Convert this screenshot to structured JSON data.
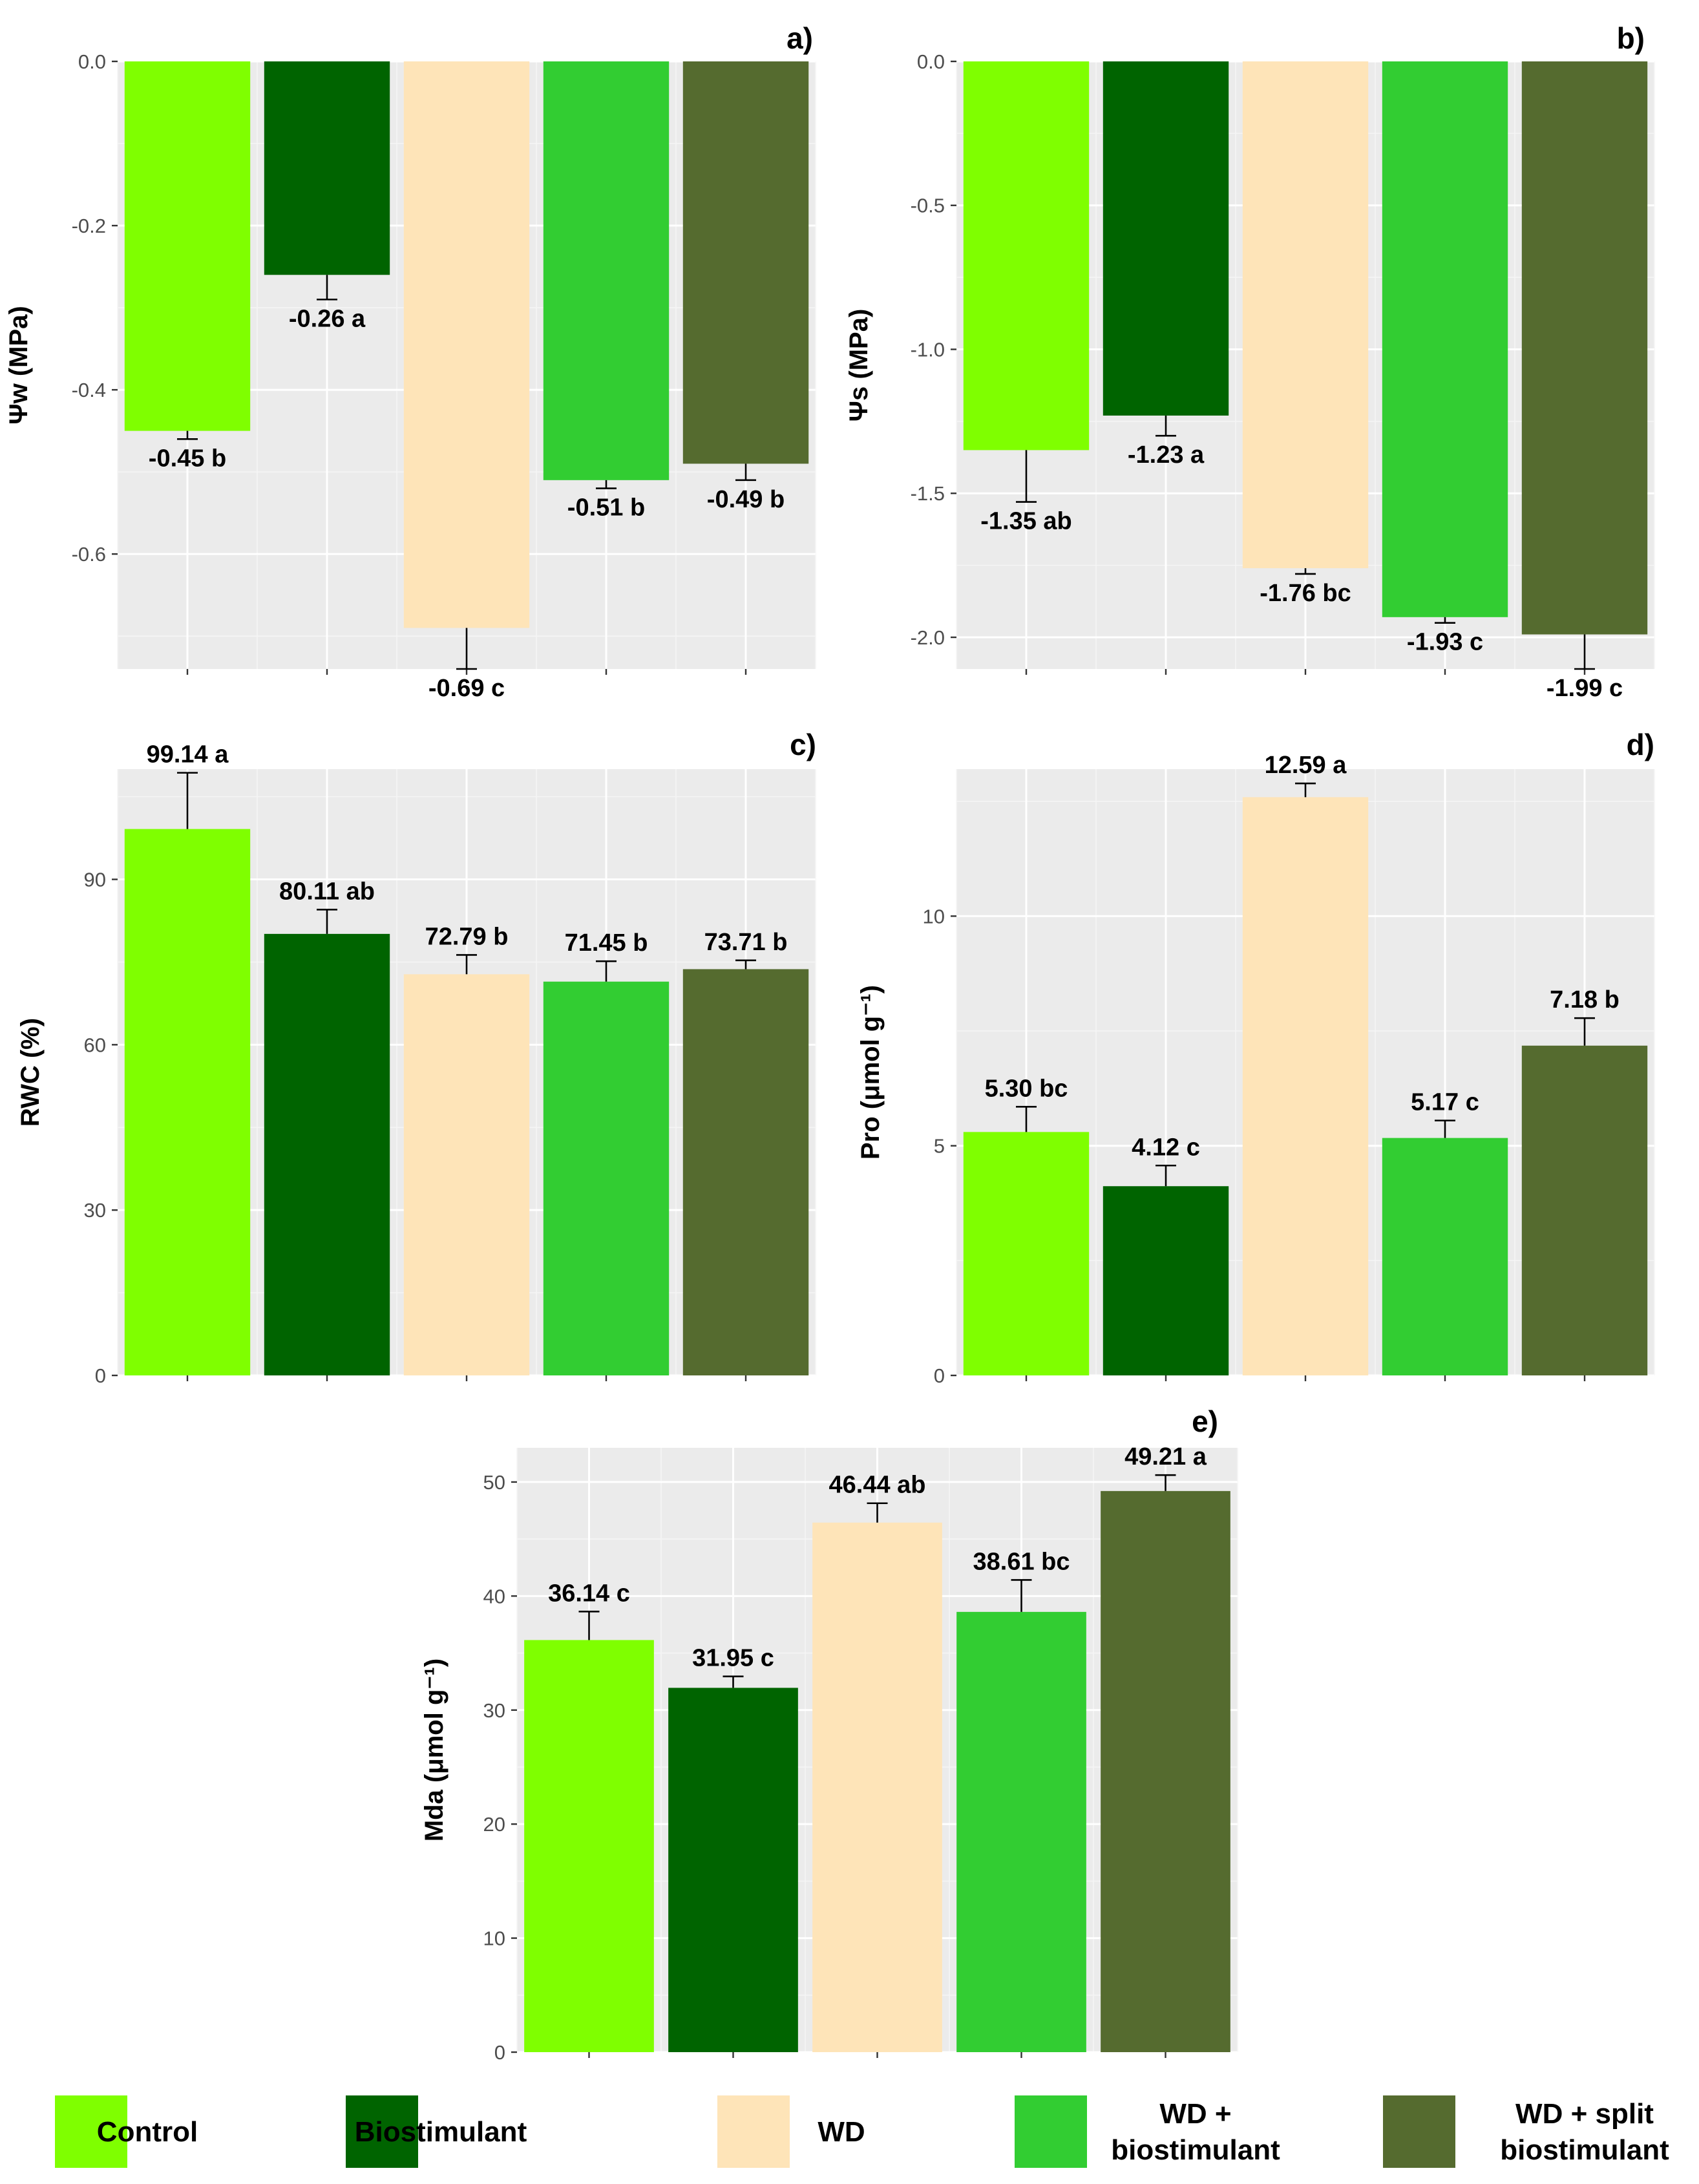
{
  "categories": [
    "Control",
    "Biostimulant",
    "WD",
    "WD + biostimulant",
    "WD + split biostimulant"
  ],
  "colors": [
    "#7fff00",
    "#006400",
    "#fee4b8",
    "#32cd32",
    "#556b2f"
  ],
  "legend": {
    "items": [
      {
        "lines": [
          "Control"
        ]
      },
      {
        "lines": [
          "Biostimulant"
        ]
      },
      {
        "lines": [
          "WD"
        ]
      },
      {
        "lines": [
          "WD +",
          "biostimulant"
        ]
      },
      {
        "lines": [
          "WD + split",
          "biostimulant"
        ]
      }
    ]
  },
  "chart_data": [
    {
      "panel": "a)",
      "type": "bar",
      "ylabel": "Ψw (MPa)",
      "ylim": [
        -0.74,
        0.0
      ],
      "yticks": [
        0.0,
        -0.2,
        -0.4,
        -0.6
      ],
      "ytick_labels": [
        "0.0",
        "-0.2",
        "-0.4",
        "-0.6"
      ],
      "values": [
        -0.45,
        -0.26,
        -0.69,
        -0.51,
        -0.49
      ],
      "errors": [
        0.01,
        0.03,
        0.05,
        0.01,
        0.02
      ],
      "labels": [
        "-0.45 b",
        "-0.26 a",
        "-0.69 c",
        "-0.51 b",
        "-0.49 b"
      ]
    },
    {
      "panel": "b)",
      "type": "bar",
      "ylabel": "Ψs (MPa)",
      "ylim": [
        -2.11,
        0.0
      ],
      "yticks": [
        0.0,
        -0.5,
        -1.0,
        -1.5,
        -2.0
      ],
      "ytick_labels": [
        "0.0",
        "-0.5",
        "-1.0",
        "-1.5",
        "-2.0"
      ],
      "values": [
        -1.35,
        -1.23,
        -1.76,
        -1.93,
        -1.99
      ],
      "errors": [
        0.18,
        0.07,
        0.02,
        0.02,
        0.12
      ],
      "labels": [
        "-1.35 ab",
        "-1.23 a",
        "-1.76 bc",
        "-1.93 c",
        "-1.99 c"
      ]
    },
    {
      "panel": "c)",
      "type": "bar",
      "ylabel": "RWC (%)",
      "ylim": [
        0,
        110
      ],
      "yticks": [
        0,
        30,
        60,
        90
      ],
      "ytick_labels": [
        "0",
        "30",
        "60",
        "90"
      ],
      "values": [
        99.14,
        80.11,
        72.79,
        71.45,
        73.71
      ],
      "errors": [
        10.2,
        4.4,
        3.5,
        3.7,
        1.6
      ],
      "labels": [
        "99.14 a",
        "80.11 ab",
        "72.79 b",
        "71.45 b",
        "73.71 b"
      ]
    },
    {
      "panel": "d)",
      "type": "bar",
      "ylabel": "Pro (μmol g⁻¹)",
      "ylim": [
        0,
        13.2
      ],
      "yticks": [
        0,
        5,
        10
      ],
      "ytick_labels": [
        "0",
        "5",
        "10"
      ],
      "values": [
        5.3,
        4.12,
        12.59,
        5.17,
        7.18
      ],
      "errors": [
        0.55,
        0.45,
        0.3,
        0.38,
        0.6
      ],
      "labels": [
        "5.30 bc",
        "4.12 c",
        "12.59 a",
        "5.17 c",
        "7.18 b"
      ]
    },
    {
      "panel": "e)",
      "type": "bar",
      "ylabel": "Mda (μmol g⁻¹)",
      "ylim": [
        0,
        53
      ],
      "yticks": [
        0,
        10,
        20,
        30,
        40,
        50
      ],
      "ytick_labels": [
        "0",
        "10",
        "20",
        "30",
        "40",
        "50"
      ],
      "values": [
        36.14,
        31.95,
        46.44,
        38.61,
        49.21
      ],
      "errors": [
        2.5,
        1.0,
        1.7,
        2.8,
        1.4
      ],
      "labels": [
        "36.14 c",
        "31.95 c",
        "46.44 ab",
        "38.61 bc",
        "49.21 a"
      ]
    }
  ]
}
